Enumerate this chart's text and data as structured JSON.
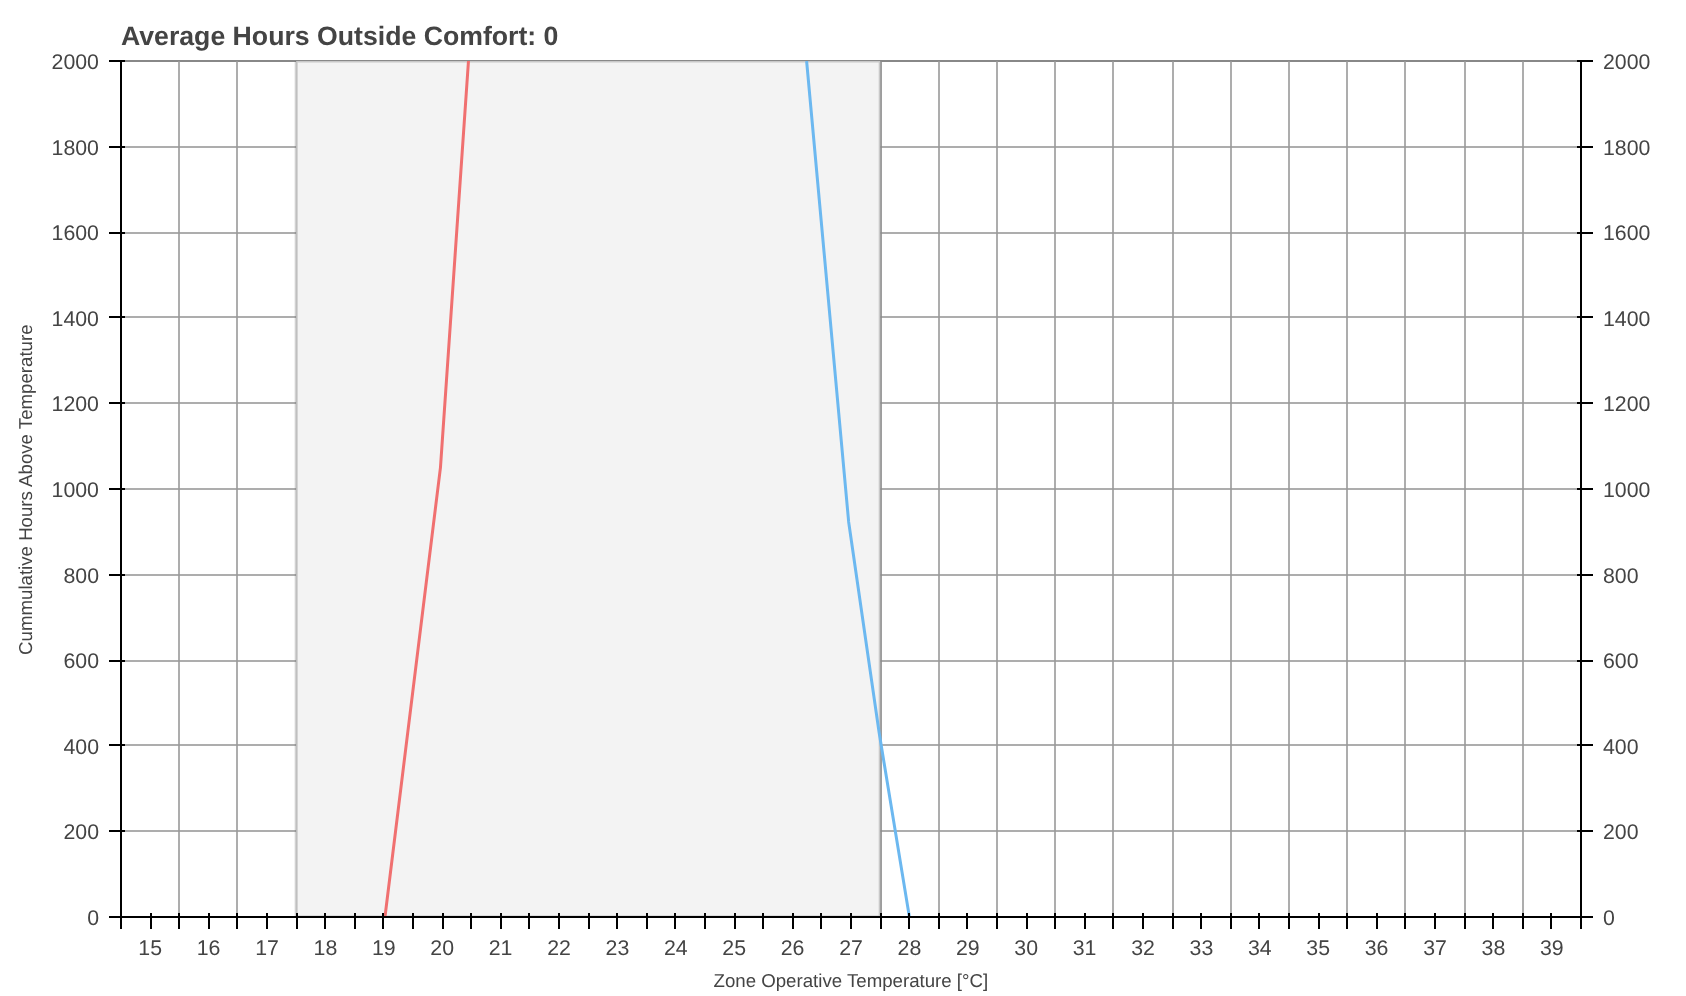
{
  "chart_data": {
    "type": "line",
    "title": "Average Hours Outside Comfort: 0",
    "xlabel": "Zone Operative Temperature [°C]",
    "ylabel": "Cummulative Hours Above Temperature",
    "series": [
      {
        "color": "#f07070",
        "x": [
          19.02,
          19.97,
          20.45
        ],
        "values": [
          0,
          1050,
          2000
        ]
      },
      {
        "color": "#6cb8f0",
        "x": [
          28.0,
          27.48,
          26.96,
          26.24
        ],
        "values": [
          0,
          432,
          923,
          2000
        ]
      }
    ],
    "xlim": [
      14.5,
      39.5
    ],
    "xticks": [
      {
        "value": 14.5,
        "label": null
      },
      15,
      {
        "value": 15.5,
        "label": null
      },
      16,
      {
        "value": 16.5,
        "label": null
      },
      17,
      {
        "value": 17.5,
        "label": null
      },
      18,
      {
        "value": 18.5,
        "label": null
      },
      19,
      {
        "value": 19.5,
        "label": null
      },
      20,
      {
        "value": 20.5,
        "label": null
      },
      21,
      {
        "value": 21.5,
        "label": null
      },
      22,
      {
        "value": 22.5,
        "label": null
      },
      23,
      {
        "value": 23.5,
        "label": null
      },
      24,
      {
        "value": 24.5,
        "label": null
      },
      25,
      {
        "value": 25.5,
        "label": null
      },
      26,
      {
        "value": 26.5,
        "label": null
      },
      27,
      {
        "value": 27.5,
        "label": null
      },
      28,
      {
        "value": 28.5,
        "label": null
      },
      29,
      {
        "value": 29.5,
        "label": null
      },
      30,
      {
        "value": 30.5,
        "label": null
      },
      31,
      {
        "value": 31.5,
        "label": null
      },
      32,
      {
        "value": 32.5,
        "label": null
      },
      33,
      {
        "value": 33.5,
        "label": null
      },
      34,
      {
        "value": 34.5,
        "label": null
      },
      35,
      {
        "value": 35.5,
        "label": null
      },
      36,
      {
        "value": 36.5,
        "label": null
      },
      37,
      {
        "value": 37.5,
        "label": null
      },
      38,
      {
        "value": 38.5,
        "label": null
      },
      39,
      {
        "value": 39.5,
        "label": null
      }
    ],
    "ylim": [
      0,
      2000
    ],
    "yticks": [
      0,
      200,
      400,
      600,
      800,
      1000,
      1200,
      1400,
      1600,
      1800,
      2000
    ],
    "y2lim": [
      0,
      2000
    ],
    "y2ticks": [
      0,
      200,
      400,
      600,
      800,
      1000,
      1200,
      1400,
      1600,
      1800,
      2000
    ],
    "bands": [
      {
        "axis": "x",
        "from": 17.5,
        "to": 27.5,
        "color": "#f3f3f3"
      }
    ],
    "grid": true,
    "marker": "none",
    "line_style": "solid"
  }
}
